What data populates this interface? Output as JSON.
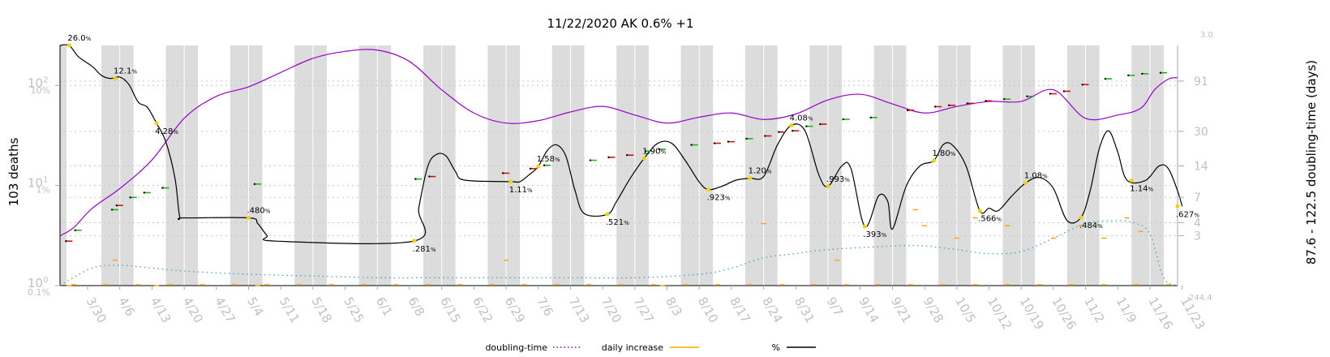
{
  "chart_data": {
    "type": "line",
    "title": "11/22/2020 AK 0.6% +1",
    "ylabel_left": "103 deaths",
    "ylabel_right": "87.6 - 122.5 doubling-time (days)",
    "left_ticks_deaths": [
      {
        "label": "10",
        "sup": "0",
        "value": 1
      },
      {
        "label": "10",
        "sup": "1",
        "value": 10
      },
      {
        "label": "10",
        "sup": "2",
        "value": 100
      }
    ],
    "left_ticks_percent": [
      {
        "label": "0.1%",
        "value": 0.1
      },
      {
        "label": "1%",
        "value": 1
      },
      {
        "label": "10%",
        "value": 10
      }
    ],
    "right_ticks_doubling": [
      {
        "label": "3",
        "value": 3
      },
      {
        "label": "4",
        "value": 4
      },
      {
        "label": "7",
        "value": 7
      },
      {
        "label": "14",
        "value": 14
      },
      {
        "label": "30",
        "value": 30
      },
      {
        "label": "91",
        "value": 91
      }
    ],
    "right_corner_top": "3.0",
    "right_corner_bottom": "244.4",
    "x_ticks": [
      "3/30",
      "4/6",
      "4/13",
      "4/20",
      "4/27",
      "5/4",
      "5/11",
      "5/18",
      "5/25",
      "6/1",
      "6/8",
      "6/15",
      "6/22",
      "6/29",
      "7/6",
      "7/13",
      "7/20",
      "7/27",
      "8/3",
      "8/10",
      "8/17",
      "8/24",
      "8/31",
      "9/7",
      "9/14",
      "9/21",
      "9/28",
      "10/5",
      "10/12",
      "10/19",
      "10/26",
      "11/2",
      "11/9",
      "11/16",
      "11/23"
    ],
    "x_range": [
      "3/24",
      "11/22"
    ],
    "percent_range": [
      0.1,
      26.0
    ],
    "grid": true,
    "weekend_shading": true,
    "legend_position": "bottom",
    "colors": {
      "percent": "#000000",
      "doubling": "#9900cc",
      "daily_increase": "#ffa500",
      "weekend": "#dcdcdc",
      "grid": "#c8c8c8",
      "tick_text": "#c0c0c0",
      "arrow_up": "#dd0000",
      "arrow_down": "#00bb00"
    },
    "series": [
      {
        "name": "%",
        "style": "solid",
        "points": [
          [
            "3/24",
            26.0
          ],
          [
            "3/26",
            26.0
          ],
          [
            "3/28",
            20.0
          ],
          [
            "3/31",
            16.0
          ],
          [
            "4/2",
            13.0
          ],
          [
            "4/4",
            12.1
          ],
          [
            "4/6",
            12.5
          ],
          [
            "4/8",
            10.5
          ],
          [
            "4/10",
            7.0
          ],
          [
            "4/12",
            6.2
          ],
          [
            "4/14",
            4.28
          ],
          [
            "4/16",
            2.8
          ],
          [
            "4/18",
            1.2
          ],
          [
            "4/19",
            0.5
          ],
          [
            "4/20",
            0.48
          ],
          [
            "5/4",
            0.48
          ],
          [
            "5/6",
            0.42
          ],
          [
            "5/8",
            0.32
          ],
          [
            "5/10",
            0.28
          ],
          [
            "6/9",
            0.281
          ],
          [
            "6/10",
            0.6
          ],
          [
            "6/12",
            1.6
          ],
          [
            "6/14",
            2.1
          ],
          [
            "6/16",
            2.0
          ],
          [
            "6/18",
            1.4
          ],
          [
            "6/20",
            1.15
          ],
          [
            "6/30",
            1.11
          ],
          [
            "7/2",
            1.11
          ],
          [
            "7/4",
            1.3
          ],
          [
            "7/6",
            1.58
          ],
          [
            "7/8",
            2.3
          ],
          [
            "7/10",
            2.6
          ],
          [
            "7/12",
            2.0
          ],
          [
            "7/14",
            0.9
          ],
          [
            "7/16",
            0.53
          ],
          [
            "7/21",
            0.521
          ],
          [
            "7/23",
            0.7
          ],
          [
            "7/26",
            1.2
          ],
          [
            "7/29",
            1.9
          ],
          [
            "8/1",
            2.7
          ],
          [
            "8/4",
            2.7
          ],
          [
            "8/7",
            1.8
          ],
          [
            "8/10",
            1.1
          ],
          [
            "8/12",
            0.923
          ],
          [
            "8/15",
            1.0
          ],
          [
            "8/18",
            1.15
          ],
          [
            "8/21",
            1.2
          ],
          [
            "8/24",
            1.25
          ],
          [
            "8/27",
            2.6
          ],
          [
            "8/30",
            4.08
          ],
          [
            "9/2",
            3.6
          ],
          [
            "9/5",
            1.3
          ],
          [
            "9/7",
            0.993
          ],
          [
            "9/10",
            1.6
          ],
          [
            "9/12",
            1.5
          ],
          [
            "9/15",
            0.393
          ],
          [
            "9/18",
            0.8
          ],
          [
            "9/20",
            0.7
          ],
          [
            "9/21",
            0.37
          ],
          [
            "9/24",
            1.0
          ],
          [
            "9/27",
            1.6
          ],
          [
            "9/30",
            1.8
          ],
          [
            "10/2",
            2.6
          ],
          [
            "10/4",
            2.6
          ],
          [
            "10/7",
            1.6
          ],
          [
            "10/10",
            0.566
          ],
          [
            "10/12",
            0.6
          ],
          [
            "10/14",
            0.566
          ],
          [
            "10/17",
            0.8
          ],
          [
            "10/20",
            1.08
          ],
          [
            "10/23",
            1.22
          ],
          [
            "10/26",
            0.95
          ],
          [
            "10/29",
            0.45
          ],
          [
            "11/1",
            0.484
          ],
          [
            "11/3",
            0.9
          ],
          [
            "11/5",
            2.4
          ],
          [
            "11/7",
            3.6
          ],
          [
            "11/9",
            2.2
          ],
          [
            "11/11",
            1.15
          ],
          [
            "11/15",
            1.14
          ],
          [
            "11/18",
            1.6
          ],
          [
            "11/20",
            1.5
          ],
          [
            "11/22",
            0.9
          ],
          [
            "11/23",
            0.627
          ]
        ]
      },
      {
        "name": "doubling-time",
        "style": "dotted",
        "points": [
          [
            "3/24",
            0.1
          ],
          [
            "3/31",
            0.15
          ],
          [
            "4/6",
            0.16
          ],
          [
            "4/13",
            0.15
          ],
          [
            "4/20",
            0.14
          ],
          [
            "5/4",
            0.13
          ],
          [
            "5/18",
            0.125
          ],
          [
            "6/1",
            0.12
          ],
          [
            "6/15",
            0.12
          ],
          [
            "6/29",
            0.12
          ],
          [
            "7/13",
            0.12
          ],
          [
            "7/27",
            0.12
          ],
          [
            "8/10",
            0.13
          ],
          [
            "8/17",
            0.15
          ],
          [
            "8/24",
            0.19
          ],
          [
            "8/31",
            0.21
          ],
          [
            "9/7",
            0.23
          ],
          [
            "9/21",
            0.25
          ],
          [
            "9/28",
            0.25
          ],
          [
            "10/5",
            0.23
          ],
          [
            "10/12",
            0.21
          ],
          [
            "10/19",
            0.22
          ],
          [
            "10/26",
            0.3
          ],
          [
            "11/2",
            0.42
          ],
          [
            "11/9",
            0.45
          ],
          [
            "11/13",
            0.42
          ],
          [
            "11/16",
            0.33
          ],
          [
            "11/19",
            0.12
          ],
          [
            "11/22",
            0.1
          ]
        ]
      },
      {
        "name": "daily increase",
        "style": "markers",
        "note": "short horizontal marks near the bottom of the plot",
        "points": [
          [
            "3/26",
            0.1
          ],
          [
            "4/5",
            0.18
          ],
          [
            "4/14",
            0.1
          ],
          [
            "5/6",
            0.1
          ],
          [
            "6/29",
            0.18
          ],
          [
            "8/2",
            0.1
          ],
          [
            "8/24",
            0.42
          ],
          [
            "9/9",
            0.18
          ],
          [
            "9/26",
            0.58
          ],
          [
            "9/28",
            0.4
          ],
          [
            "10/5",
            0.3
          ],
          [
            "10/9",
            0.48
          ],
          [
            "10/16",
            0.4
          ],
          [
            "10/26",
            0.3
          ],
          [
            "11/1",
            0.4
          ],
          [
            "11/6",
            0.3
          ],
          [
            "11/11",
            0.48
          ],
          [
            "11/14",
            0.35
          ]
        ]
      }
    ],
    "point_labels": [
      {
        "date": "3/26",
        "value": 26.0,
        "text": "26.0%"
      },
      {
        "date": "4/5",
        "value": 12.1,
        "text": "12.1%"
      },
      {
        "date": "4/14",
        "value": 4.28,
        "text": "4.28%"
      },
      {
        "date": "5/4",
        "value": 0.48,
        "text": ".480%"
      },
      {
        "date": "6/9",
        "value": 0.281,
        "text": ".281%"
      },
      {
        "date": "6/30",
        "value": 1.11,
        "text": "1.11%"
      },
      {
        "date": "7/6",
        "value": 1.58,
        "text": "1.58%"
      },
      {
        "date": "7/21",
        "value": 0.521,
        "text": ".521%"
      },
      {
        "date": "7/29",
        "value": 1.9,
        "text": "1.90%"
      },
      {
        "date": "8/12",
        "value": 0.923,
        "text": ".923%"
      },
      {
        "date": "8/21",
        "value": 1.2,
        "text": "1.20%"
      },
      {
        "date": "8/30",
        "value": 4.08,
        "text": "4.08%"
      },
      {
        "date": "9/7",
        "value": 0.993,
        "text": ".993%"
      },
      {
        "date": "9/15",
        "value": 0.393,
        "text": ".393%"
      },
      {
        "date": "9/30",
        "value": 1.8,
        "text": "1.80%"
      },
      {
        "date": "10/10",
        "value": 0.566,
        "text": ".566%"
      },
      {
        "date": "10/20",
        "value": 1.08,
        "text": "1.08%"
      },
      {
        "date": "11/1",
        "value": 0.484,
        "text": ".484%"
      },
      {
        "date": "11/12",
        "value": 1.14,
        "text": "1.14%"
      },
      {
        "date": "11/22",
        "value": 0.627,
        "text": ".627%"
      }
    ],
    "arrow_markers": [
      {
        "date": "3/26",
        "value": 0.28,
        "dir": "up"
      },
      {
        "date": "3/28",
        "value": 0.36,
        "dir": "down"
      },
      {
        "date": "4/5",
        "value": 0.58,
        "dir": "down"
      },
      {
        "date": "4/6",
        "value": 0.64,
        "dir": "up"
      },
      {
        "date": "4/9",
        "value": 0.77,
        "dir": "down"
      },
      {
        "date": "4/12",
        "value": 0.86,
        "dir": "down"
      },
      {
        "date": "4/16",
        "value": 0.96,
        "dir": "down"
      },
      {
        "date": "5/6",
        "value": 1.05,
        "dir": "down"
      },
      {
        "date": "6/10",
        "value": 1.18,
        "dir": "down"
      },
      {
        "date": "6/13",
        "value": 1.25,
        "dir": "up"
      },
      {
        "date": "6/29",
        "value": 1.35,
        "dir": "up"
      },
      {
        "date": "7/5",
        "value": 1.5,
        "dir": "up"
      },
      {
        "date": "7/8",
        "value": 1.62,
        "dir": "down"
      },
      {
        "date": "7/18",
        "value": 1.82,
        "dir": "down"
      },
      {
        "date": "7/22",
        "value": 1.95,
        "dir": "up"
      },
      {
        "date": "7/26",
        "value": 2.05,
        "dir": "up"
      },
      {
        "date": "7/30",
        "value": 2.25,
        "dir": "down"
      },
      {
        "date": "8/2",
        "value": 2.35,
        "dir": "down"
      },
      {
        "date": "8/9",
        "value": 2.6,
        "dir": "down"
      },
      {
        "date": "8/14",
        "value": 2.7,
        "dir": "up"
      },
      {
        "date": "8/17",
        "value": 2.8,
        "dir": "up"
      },
      {
        "date": "8/21",
        "value": 3.0,
        "dir": "down"
      },
      {
        "date": "8/25",
        "value": 3.2,
        "dir": "up"
      },
      {
        "date": "8/28",
        "value": 3.5,
        "dir": "up"
      },
      {
        "date": "8/31",
        "value": 3.6,
        "dir": "up"
      },
      {
        "date": "9/3",
        "value": 4.0,
        "dir": "down"
      },
      {
        "date": "9/6",
        "value": 4.2,
        "dir": "up"
      },
      {
        "date": "9/11",
        "value": 4.7,
        "dir": "down"
      },
      {
        "date": "9/17",
        "value": 4.9,
        "dir": "down"
      },
      {
        "date": "9/25",
        "value": 5.8,
        "dir": "up"
      },
      {
        "date": "10/1",
        "value": 6.3,
        "dir": "up"
      },
      {
        "date": "10/4",
        "value": 6.5,
        "dir": "up"
      },
      {
        "date": "10/8",
        "value": 6.8,
        "dir": "up"
      },
      {
        "date": "10/12",
        "value": 7.2,
        "dir": "up"
      },
      {
        "date": "10/16",
        "value": 7.5,
        "dir": "down"
      },
      {
        "date": "10/21",
        "value": 8.0,
        "dir": "down"
      },
      {
        "date": "10/26",
        "value": 8.5,
        "dir": "up"
      },
      {
        "date": "10/29",
        "value": 9.0,
        "dir": "up"
      },
      {
        "date": "11/2",
        "value": 10.5,
        "dir": "up"
      },
      {
        "date": "11/7",
        "value": 12.0,
        "dir": "down"
      },
      {
        "date": "11/12",
        "value": 13.0,
        "dir": "down"
      },
      {
        "date": "11/15",
        "value": 13.5,
        "dir": "down"
      },
      {
        "date": "11/19",
        "value": 13.8,
        "dir": "down"
      }
    ]
  },
  "legend": [
    {
      "key": "doubling",
      "label": "doubling-time"
    },
    {
      "key": "daily",
      "label": "daily increase"
    },
    {
      "key": "percent",
      "label": "%"
    }
  ]
}
